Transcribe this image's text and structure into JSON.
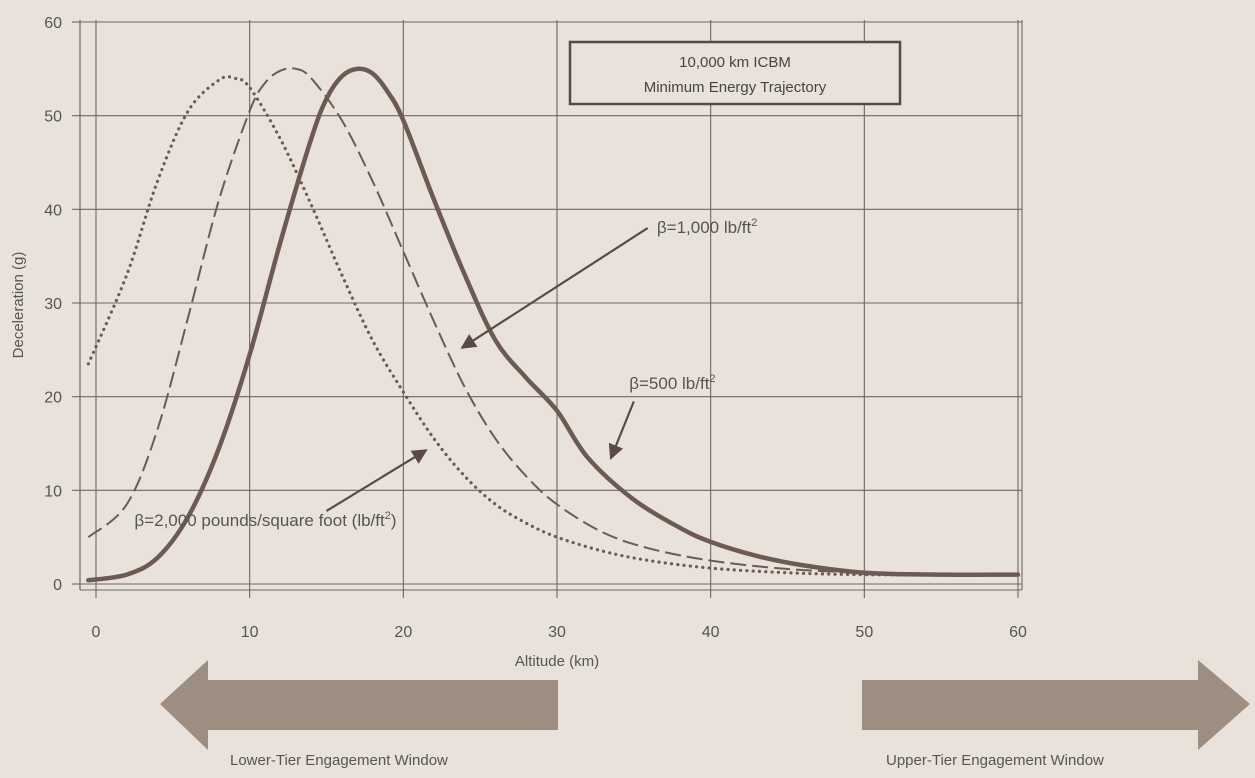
{
  "chart_data": {
    "type": "line",
    "title": "",
    "box_title_line1": "10,000 km ICBM",
    "box_title_line2": "Minimum Energy Trajectory",
    "xlabel": "Altitude (km)",
    "ylabel": "Deceleration (g)",
    "xlim": [
      -1,
      60.5
    ],
    "ylim": [
      -1,
      60
    ],
    "xticks": [
      0,
      10,
      20,
      30,
      40,
      50,
      60
    ],
    "yticks": [
      0,
      10,
      20,
      30,
      40,
      50,
      60
    ],
    "grid": true,
    "series": [
      {
        "name": "β=500 lb/ft²",
        "style": "solid",
        "color": "#6e5a55",
        "x": [
          -0.5,
          2,
          4,
          6,
          8,
          10,
          12,
          14,
          15,
          16,
          17,
          18,
          19,
          20,
          22,
          24,
          26,
          28,
          30,
          32,
          35,
          38,
          40,
          43,
          46,
          50,
          55,
          60
        ],
        "y": [
          0.4,
          1.0,
          2.8,
          7.2,
          14.5,
          24.5,
          36.5,
          47.5,
          51.8,
          54.2,
          55.0,
          54.5,
          52.5,
          49.5,
          41.0,
          33.0,
          26.0,
          22.0,
          18.5,
          13.5,
          9.0,
          6.0,
          4.5,
          3.0,
          2.0,
          1.2,
          1.0,
          1.0
        ]
      },
      {
        "name": "β=1,000 lb/ft²",
        "style": "dashed",
        "color": "#6e5a55",
        "x": [
          -0.5,
          2,
          4,
          6,
          8,
          10,
          11,
          12,
          13,
          14,
          16,
          18,
          20,
          22,
          24,
          26,
          28,
          30,
          33,
          36,
          40,
          45,
          50,
          55,
          60
        ],
        "y": [
          5.0,
          8.5,
          16.5,
          28.5,
          41.0,
          50.5,
          53.5,
          54.8,
          55.0,
          54.0,
          49.5,
          43.0,
          35.5,
          28.0,
          21.0,
          15.5,
          11.5,
          8.5,
          5.5,
          3.8,
          2.5,
          1.6,
          1.2,
          1.0,
          1.0
        ]
      },
      {
        "name": "β=2,000 pounds/square foot (lb/ft²)",
        "style": "dotted",
        "color": "#6e5a55",
        "x": [
          -0.5,
          2,
          4,
          6,
          8,
          9,
          10,
          12,
          14,
          16,
          18,
          20,
          22,
          24,
          26,
          28,
          30,
          33,
          36,
          40,
          45,
          50,
          55,
          60
        ],
        "y": [
          23.5,
          33.0,
          43.0,
          50.5,
          53.8,
          54.0,
          53.0,
          47.5,
          40.5,
          33.0,
          26.0,
          20.5,
          15.5,
          11.5,
          8.5,
          6.5,
          5.0,
          3.5,
          2.5,
          1.7,
          1.2,
          1.0,
          1.0,
          1.0
        ]
      }
    ],
    "annotations": [
      {
        "label": "β=1,000 lb/ft",
        "sup": "2",
        "x": 36.5,
        "y": 37.5,
        "arrow_to": [
          29.6,
          31.0
        ],
        "arrow_to_x": 23.8,
        "arrow_to_y": 25.0
      },
      {
        "label": "β=500 lb/ft",
        "sup": "2",
        "x": 34.7,
        "y": 20.8,
        "arrow_to_x": 33.5,
        "arrow_to_y": 13.2
      },
      {
        "label": "β=2,000 pounds/square foot (lb/ft",
        "sup": "2",
        "suffix": ")",
        "x": 2.5,
        "y": 6.2,
        "arrow_to_x": 21.5,
        "arrow_to_y": 14.5
      }
    ],
    "engagement_windows": [
      {
        "label": "Lower-Tier Engagement Window",
        "direction": "left"
      },
      {
        "label": "Upper-Tier Engagement Window",
        "direction": "right"
      }
    ],
    "colors": {
      "background": "#e8e2da",
      "grid": "#6f6661",
      "arrow_fill": "#9c8f82",
      "curve": "#6e5a55"
    }
  }
}
